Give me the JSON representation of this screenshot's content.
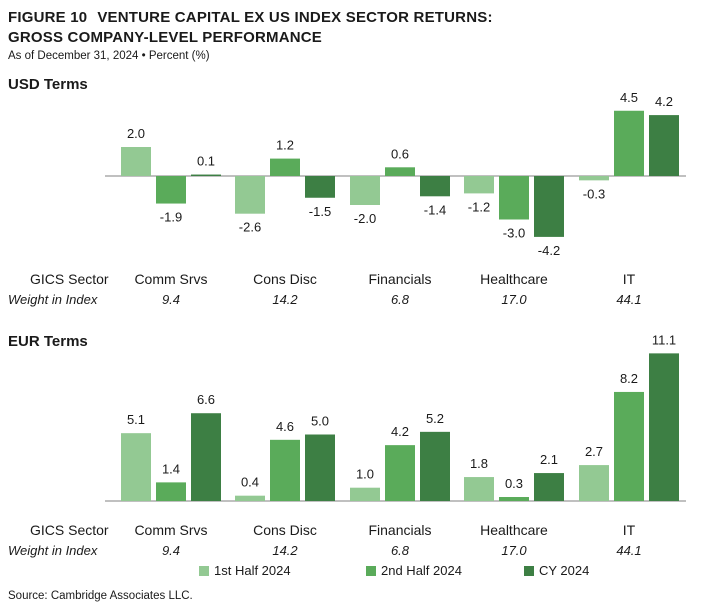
{
  "header": {
    "figure_label": "FIGURE 10",
    "title_line1": "VENTURE CAPITAL EX US INDEX SECTOR RETURNS:",
    "title_line2": "GROSS COMPANY-LEVEL PERFORMANCE",
    "subtitle": "As of December 31, 2024 • Percent (%)"
  },
  "colors": {
    "1st Half 2024": "#93c993",
    "2nd Half 2024": "#5aab5a",
    "CY 2024": "#3d7f44"
  },
  "row_labels": {
    "sector": "GICS Sector",
    "weight": "Weight in Index"
  },
  "chart_data": [
    {
      "type": "bar",
      "title": "USD Terms",
      "categories": [
        "Comm Srvs",
        "Cons Disc",
        "Financials",
        "Healthcare",
        "IT"
      ],
      "weights": [
        "9.4",
        "14.2",
        "6.8",
        "17.0",
        "44.1"
      ],
      "series": [
        {
          "name": "1st Half 2024",
          "values": [
            2.0,
            -2.6,
            -2.0,
            -1.2,
            -0.3
          ]
        },
        {
          "name": "2nd Half 2024",
          "values": [
            -1.9,
            1.2,
            0.6,
            -3.0,
            4.5
          ]
        },
        {
          "name": "CY 2024",
          "values": [
            0.1,
            -1.5,
            -1.4,
            -4.2,
            4.2
          ]
        }
      ],
      "ylim": [
        -4.2,
        4.5
      ],
      "grid": false
    },
    {
      "type": "bar",
      "title": "EUR Terms",
      "categories": [
        "Comm Srvs",
        "Cons Disc",
        "Financials",
        "Healthcare",
        "IT"
      ],
      "weights": [
        "9.4",
        "14.2",
        "6.8",
        "17.0",
        "44.1"
      ],
      "series": [
        {
          "name": "1st Half 2024",
          "values": [
            5.1,
            0.4,
            1.0,
            1.8,
            2.7
          ]
        },
        {
          "name": "2nd Half 2024",
          "values": [
            1.4,
            4.6,
            4.2,
            0.3,
            8.2
          ]
        },
        {
          "name": "CY 2024",
          "values": [
            6.6,
            5.0,
            5.2,
            2.1,
            11.1
          ]
        }
      ],
      "ylim": [
        0,
        11.1
      ],
      "grid": false
    }
  ],
  "legend": {
    "items": [
      "1st Half 2024",
      "2nd Half 2024",
      "CY 2024"
    ],
    "position": "bottom"
  },
  "source": "Source: Cambridge Associates LLC."
}
